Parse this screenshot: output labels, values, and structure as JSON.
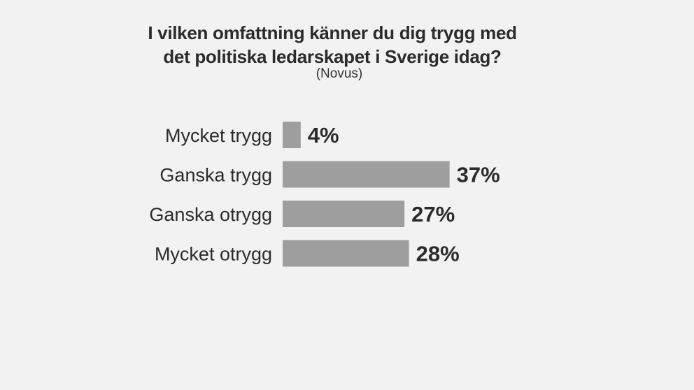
{
  "chart_data": {
    "type": "bar",
    "orientation": "horizontal",
    "title_lines": [
      "I vilken omfattning känner du dig trygg med",
      "det politiska ledarskapet i Sverige idag?"
    ],
    "subtitle": "(Novus)",
    "categories": [
      "Mycket trygg",
      "Ganska trygg",
      "Ganska otrygg",
      "Mycket otrygg"
    ],
    "values": [
      4,
      37,
      27,
      28
    ],
    "value_labels": [
      "4%",
      "37%",
      "27%",
      "28%"
    ],
    "bar_color": "#9e9e9e",
    "xlim": [
      0,
      100
    ],
    "grid": false
  }
}
